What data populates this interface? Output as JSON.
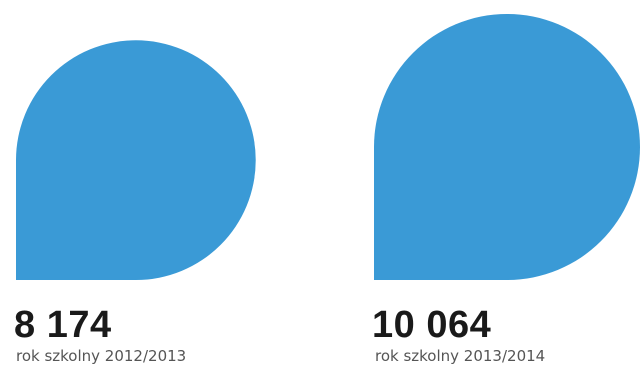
{
  "chart_data": {
    "type": "bar",
    "categories": [
      "rok szkolny 2012/2013",
      "rok szkolny 2013/2014"
    ],
    "values": [
      8174,
      10064
    ],
    "value_labels": [
      "8 174",
      "10 064"
    ],
    "title": "",
    "xlabel": "",
    "ylabel": "",
    "grid": false,
    "colors": {
      "shape": "#3a9ad6",
      "value_text": "#1a1a1a",
      "category_text": "#555555"
    }
  }
}
